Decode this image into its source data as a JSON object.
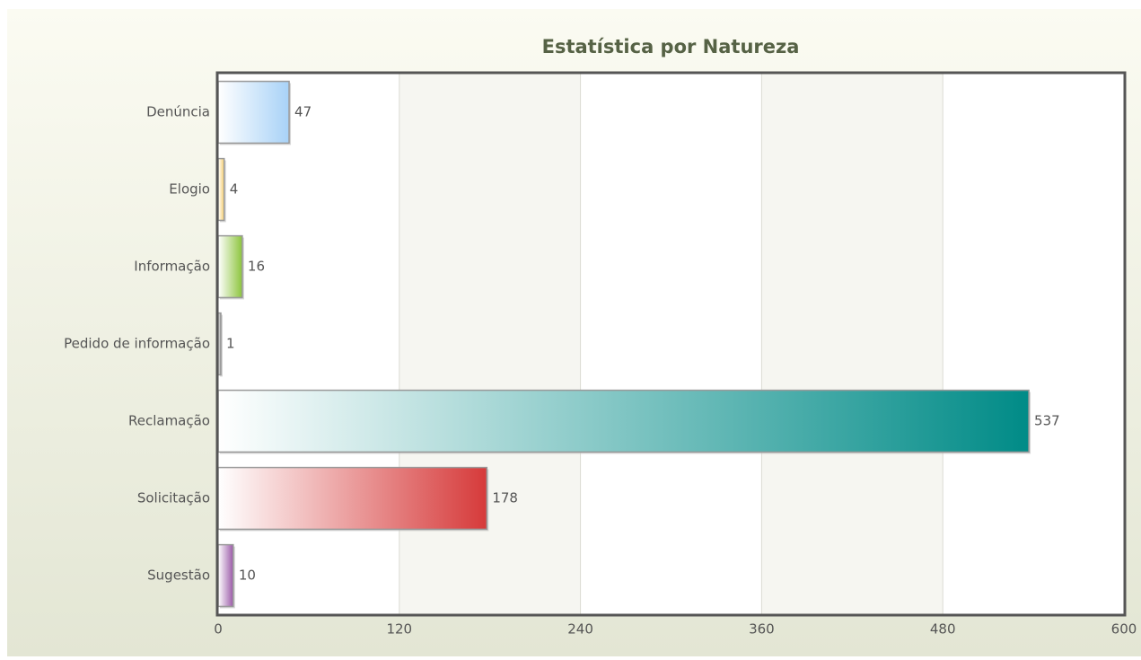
{
  "chart_data": {
    "type": "barh",
    "title": "Estatística por Natureza",
    "categories": [
      "Denúncia",
      "Elogio",
      "Informação",
      "Pedido de informação",
      "Reclamação",
      "Solicitação",
      "Sugestão"
    ],
    "values": [
      47,
      4,
      16,
      1,
      537,
      178,
      10
    ],
    "colors": [
      "#a8d2f7",
      "#f3cc6e",
      "#8cc43c",
      "#8a8a8a",
      "#008b87",
      "#d63a3a",
      "#9b5aa8"
    ],
    "xlim": [
      0,
      600
    ],
    "xticks": [
      0,
      120,
      240,
      360,
      480,
      600
    ],
    "grid": true
  }
}
